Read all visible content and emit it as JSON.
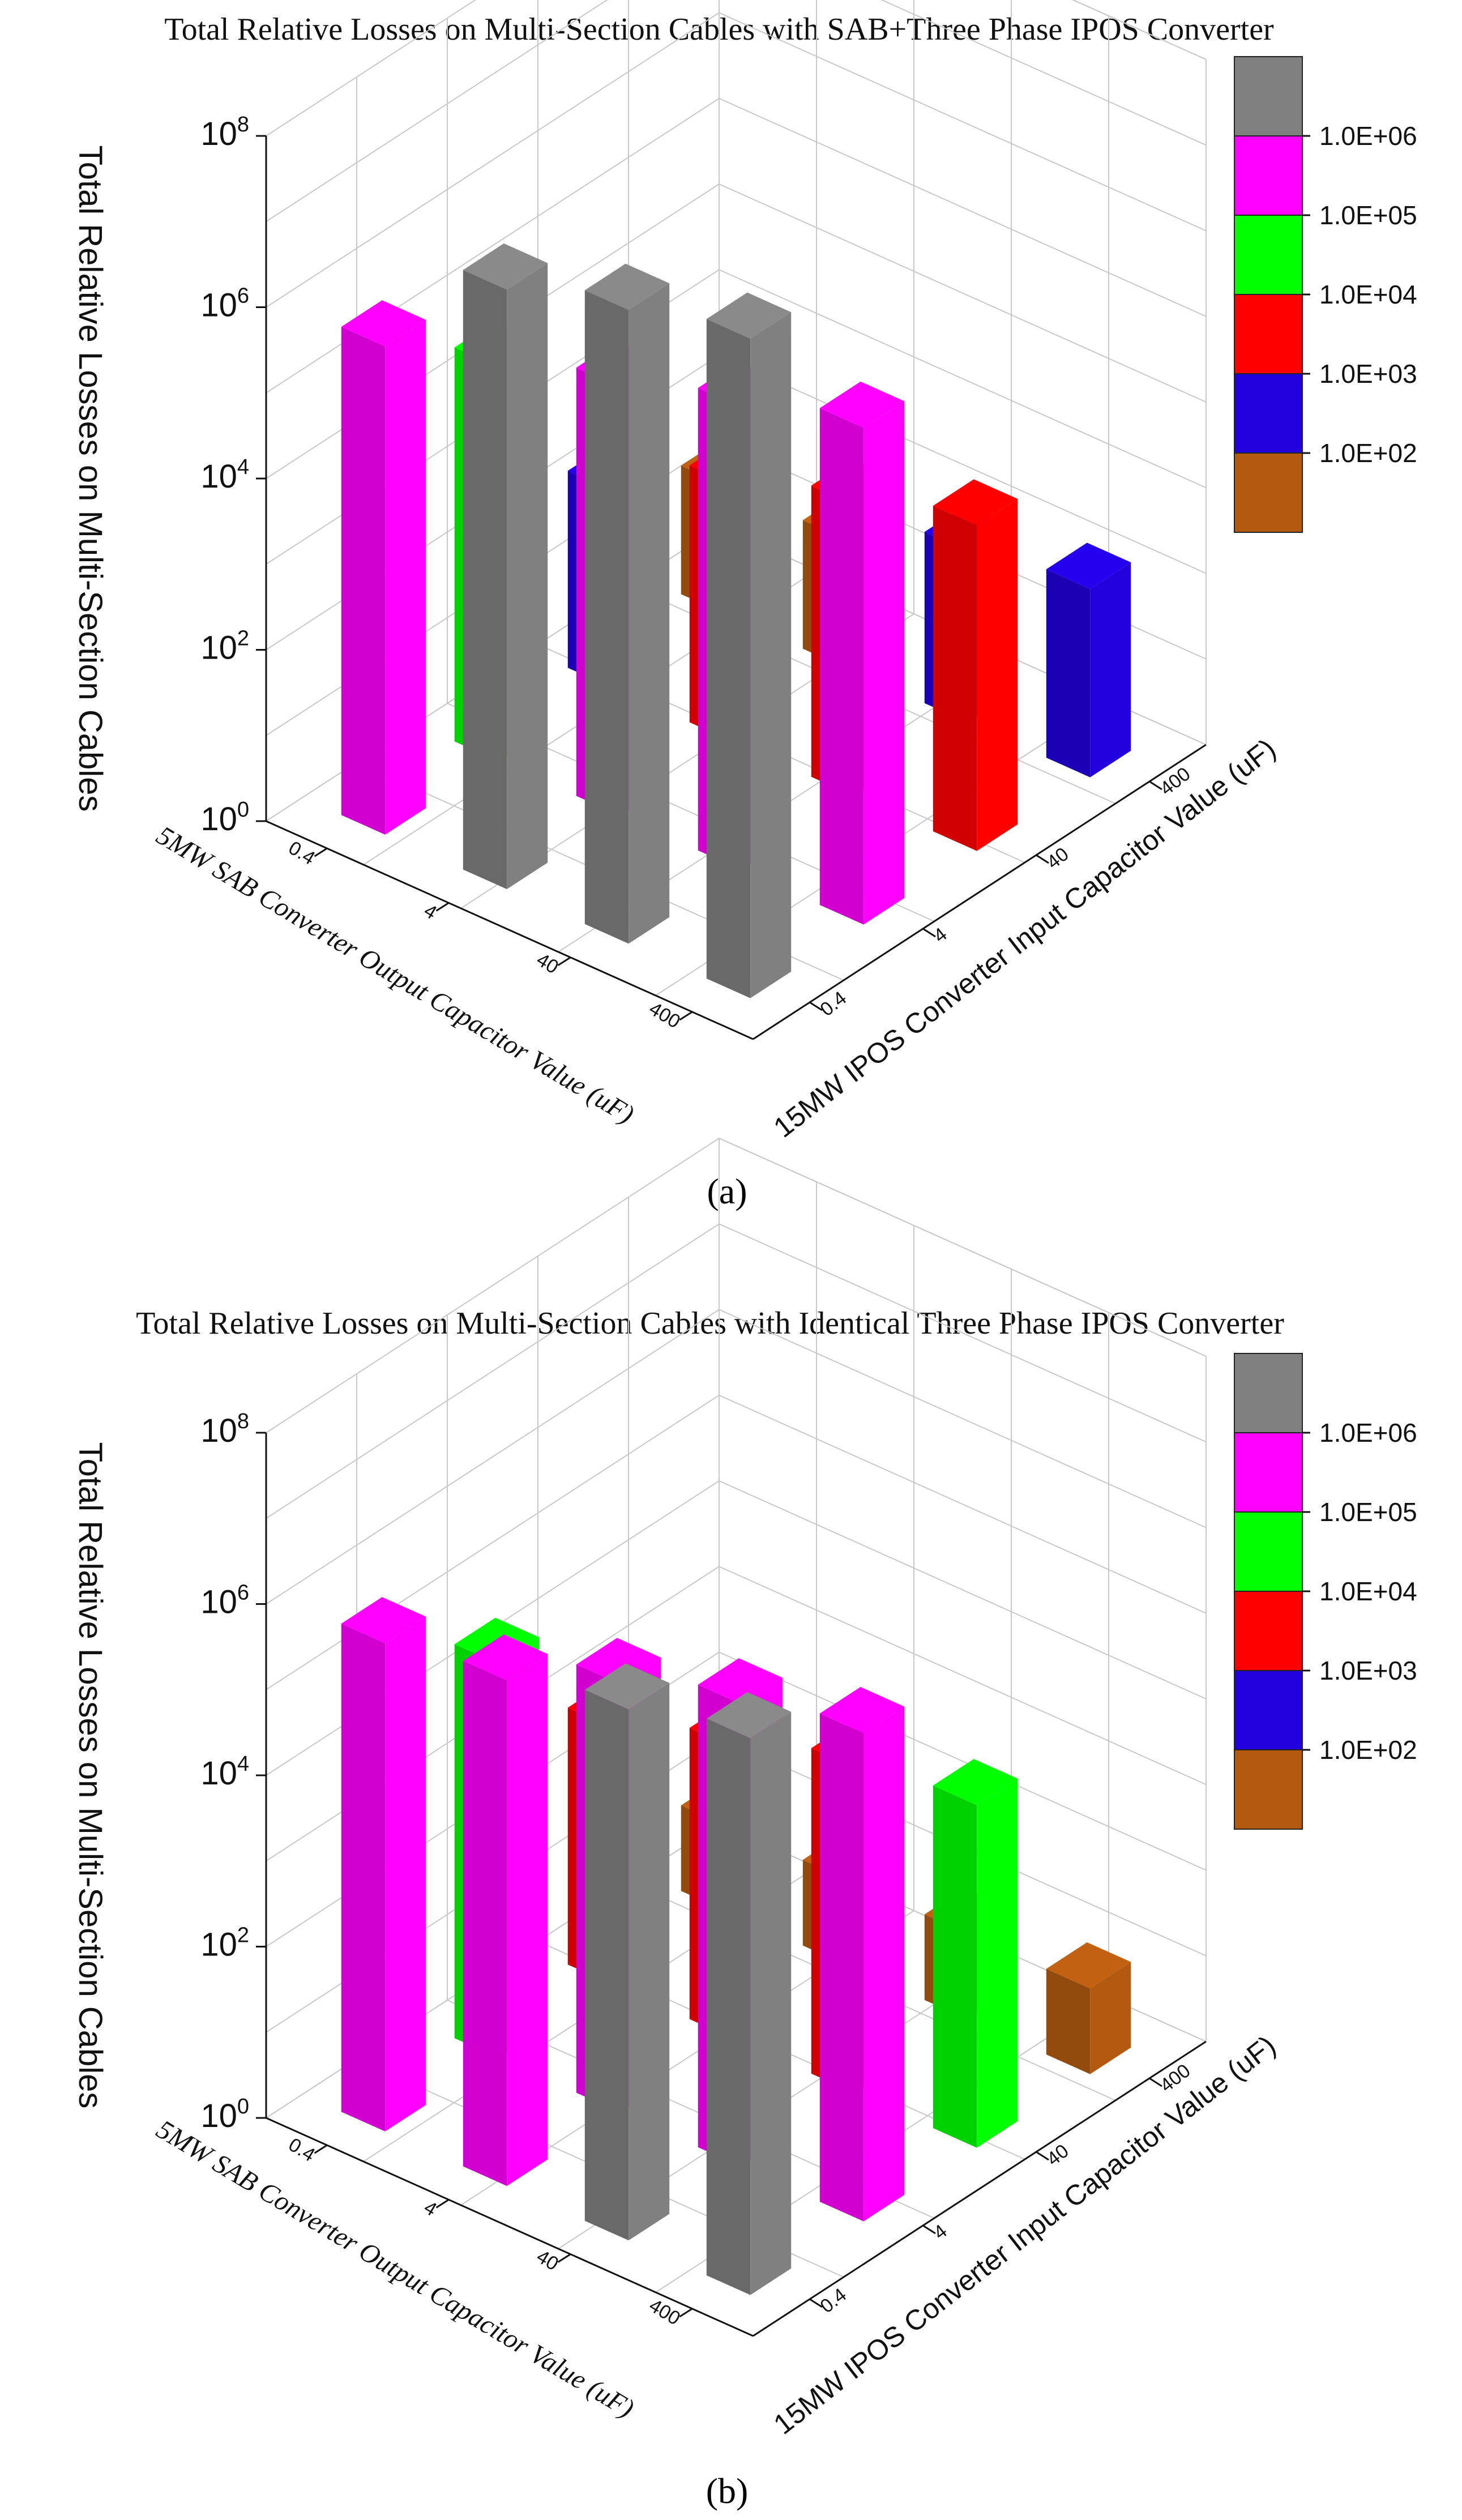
{
  "figure": {
    "caption_a": "(a)",
    "caption_b": "(b)"
  },
  "legend": {
    "entries": [
      {
        "label": "",
        "color": "#808080"
      },
      {
        "label": "1.0E+06",
        "color": "#ff00ff"
      },
      {
        "label": "1.0E+05",
        "color": "#00ff00"
      },
      {
        "label": "1.0E+04",
        "color": "#ff0000"
      },
      {
        "label": "1.0E+03",
        "color": "#2200dd"
      },
      {
        "label": "1.0E+02",
        "color": "#b35a10"
      }
    ]
  },
  "chart_data": [
    {
      "type": "bar3d",
      "title": "Total Relative Losses on Multi-Section Cables with SAB+Three Phase IPOS Converter",
      "zlabel": "Total Relative Losses on Multi-Section Cables",
      "xlabel": "5MW SAB Converter Output Capacitor Value (uF)",
      "ylabel": "15MW IPOS Converter Input Capacitor Value (uF)",
      "x_categories": [
        "0.4",
        "4",
        "40",
        "400"
      ],
      "y_categories": [
        "0.4",
        "4",
        "40",
        "400"
      ],
      "z_scale": "log",
      "z_ticks": [
        "10^0",
        "10^2",
        "10^4",
        "10^6",
        "10^8"
      ],
      "z_exponents": [
        0,
        2,
        4,
        6,
        8
      ],
      "values_log10": [
        [
          5.7,
          4.6,
          2.3,
          1.5
        ],
        [
          7.0,
          5.0,
          3.0,
          1.5
        ],
        [
          7.4,
          5.4,
          3.4,
          2.0
        ],
        [
          7.7,
          5.8,
          3.8,
          2.2
        ]
      ]
    },
    {
      "type": "bar3d",
      "title": "Total Relative Losses on Multi-Section Cables with Identical Three Phase IPOS Converter",
      "zlabel": "Total Relative Losses on Multi-Section Cables",
      "xlabel": "5MW SAB Converter Output Capacitor Value (uF)",
      "ylabel": "15MW IPOS Converter Input Capacitor Value (uF)",
      "x_categories": [
        "0.4",
        "4",
        "40",
        "400"
      ],
      "y_categories": [
        "0.4",
        "4",
        "40",
        "400"
      ],
      "z_scale": "log",
      "z_ticks": [
        "10^0",
        "10^2",
        "10^4",
        "10^6",
        "10^8"
      ],
      "z_exponents": [
        0,
        2,
        4,
        6,
        8
      ],
      "values_log10": [
        [
          5.7,
          4.6,
          3.0,
          1.0
        ],
        [
          5.9,
          5.0,
          3.4,
          1.0
        ],
        [
          6.2,
          5.4,
          3.8,
          1.0
        ],
        [
          6.5,
          5.7,
          4.0,
          1.0
        ]
      ]
    }
  ]
}
